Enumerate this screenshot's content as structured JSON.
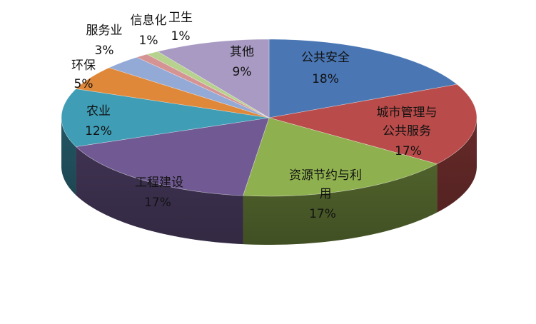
{
  "chart_data": {
    "type": "pie",
    "variant": "3d",
    "legend": "none",
    "slices": [
      {
        "label": "公共安全",
        "value": 18,
        "value_label": "18%",
        "color": "#4a77b4"
      },
      {
        "label": "城市管理与公共服务",
        "value": 17,
        "value_label": "17%",
        "color": "#b94c4a"
      },
      {
        "label": "资源节约与利用",
        "value": 17,
        "value_label": "17%",
        "color": "#8fb04f"
      },
      {
        "label": "工程建设",
        "value": 17,
        "value_label": "17%",
        "color": "#715a93"
      },
      {
        "label": "农业",
        "value": 12,
        "value_label": "12%",
        "color": "#3f9db6"
      },
      {
        "label": "环保",
        "value": 5,
        "value_label": "5%",
        "color": "#e0883a"
      },
      {
        "label": "服务业",
        "value": 3,
        "value_label": "3%",
        "color": "#93a9d6"
      },
      {
        "label": "信息化",
        "value": 1,
        "value_label": "1%",
        "color": "#d69393"
      },
      {
        "label": "卫生",
        "value": 1,
        "value_label": "1%",
        "color": "#b7d18e"
      },
      {
        "label": "其他",
        "value": 9,
        "value_label": "9%",
        "color": "#a89ac2"
      }
    ]
  }
}
